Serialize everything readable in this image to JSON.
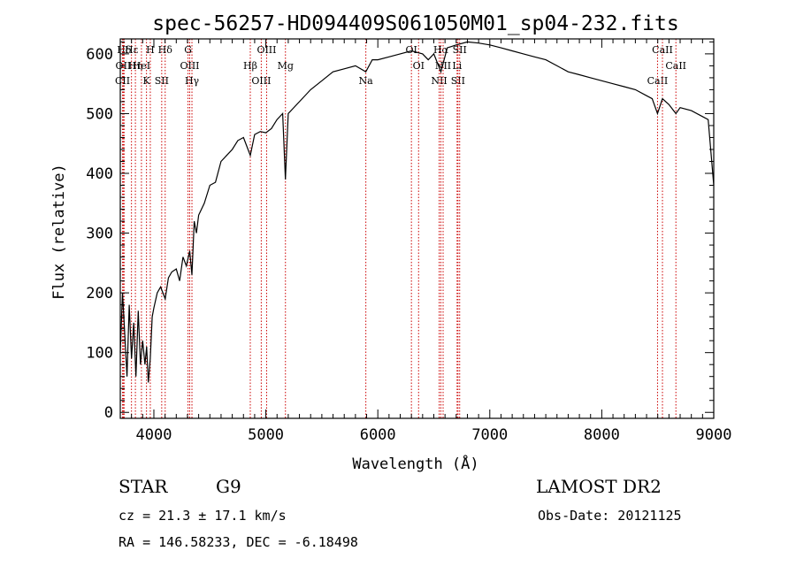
{
  "chart_data": {
    "type": "line",
    "title": "spec-56257-HD094409S061050M01_sp04-232.fits",
    "xlabel": "Wavelength (Å)",
    "ylabel": "Flux (relative)",
    "xlim": [
      3700,
      9000
    ],
    "ylim": [
      -10,
      625
    ],
    "x_ticks": [
      4000,
      5000,
      6000,
      7000,
      8000,
      9000
    ],
    "y_ticks": [
      0,
      100,
      200,
      300,
      400,
      500,
      600
    ],
    "grid": false,
    "series": [
      {
        "x": [
          3700,
          3720,
          3740,
          3760,
          3780,
          3800,
          3820,
          3840,
          3860,
          3880,
          3900,
          3920,
          3935,
          3950,
          3968,
          3985,
          4000,
          4030,
          4060,
          4101,
          4130,
          4160,
          4200,
          4230,
          4260,
          4290,
          4320,
          4340,
          4360,
          4380,
          4400,
          4450,
          4500,
          4550,
          4600,
          4650,
          4700,
          4750,
          4800,
          4861,
          4900,
          4950,
          5000,
          5050,
          5100,
          5150,
          5175,
          5200,
          5300,
          5400,
          5500,
          5600,
          5700,
          5800,
          5893,
          5950,
          6000,
          6100,
          6200,
          6300,
          6400,
          6450,
          6500,
          6563,
          6620,
          6700,
          6800,
          6900,
          7000,
          7100,
          7200,
          7300,
          7400,
          7500,
          7600,
          7700,
          7800,
          7900,
          8000,
          8100,
          8200,
          8300,
          8400,
          8450,
          8498,
          8542,
          8600,
          8662,
          8700,
          8800,
          8900,
          8950,
          9000
        ],
        "y": [
          100,
          200,
          130,
          60,
          180,
          90,
          150,
          60,
          170,
          80,
          120,
          80,
          110,
          50,
          90,
          160,
          175,
          200,
          210,
          190,
          225,
          235,
          240,
          220,
          260,
          245,
          270,
          230,
          320,
          300,
          330,
          350,
          380,
          385,
          420,
          430,
          440,
          455,
          460,
          430,
          465,
          470,
          468,
          475,
          490,
          500,
          390,
          500,
          520,
          540,
          555,
          570,
          575,
          580,
          570,
          590,
          590,
          595,
          600,
          605,
          600,
          590,
          600,
          570,
          610,
          615,
          620,
          618,
          615,
          610,
          605,
          600,
          595,
          590,
          580,
          570,
          565,
          560,
          555,
          550,
          545,
          540,
          530,
          525,
          500,
          525,
          515,
          500,
          510,
          505,
          495,
          490,
          380
        ]
      }
    ],
    "annotations": [
      {
        "label": "Hδ",
        "x": 3734
      },
      {
        "label": "OII",
        "x": 3727
      },
      {
        "label": "CII",
        "x": 3720
      },
      {
        "label": "Hε",
        "x": 3800
      },
      {
        "label": "Hη",
        "x": 3835
      },
      {
        "label": "K",
        "x": 3934
      },
      {
        "label": "H",
        "x": 3968
      },
      {
        "label": "HeI",
        "x": 3889
      },
      {
        "label": "SII",
        "x": 4070
      },
      {
        "label": "Hδ",
        "x": 4101
      },
      {
        "label": "OIII",
        "x": 4320
      },
      {
        "label": "Hγ",
        "x": 4340
      },
      {
        "label": "G",
        "x": 4305
      },
      {
        "label": "Hβ",
        "x": 4861
      },
      {
        "label": "OIII",
        "x": 4959
      },
      {
        "label": "OIII",
        "x": 5007
      },
      {
        "label": "Mg",
        "x": 5175
      },
      {
        "label": "Na",
        "x": 5893
      },
      {
        "label": "OI",
        "x": 6300
      },
      {
        "label": "OI",
        "x": 6364
      },
      {
        "label": "NII",
        "x": 6548
      },
      {
        "label": "Hα",
        "x": 6563
      },
      {
        "label": "NII",
        "x": 6583
      },
      {
        "label": "SII",
        "x": 6716
      },
      {
        "label": "SII",
        "x": 6731
      },
      {
        "label": "Li",
        "x": 6708
      },
      {
        "label": "CaII",
        "x": 8498
      },
      {
        "label": "CaII",
        "x": 8542
      },
      {
        "label": "CaII",
        "x": 8662
      }
    ]
  },
  "info": {
    "class_label": "STAR",
    "subclass_label": "G9",
    "survey": "LAMOST DR2",
    "redshift": "cz = 21.3 ± 17.1 km/s",
    "obs_date": "Obs-Date: 20121125",
    "coords": "RA = 146.58233, DEC =  -6.18498"
  },
  "colors": {
    "line": "#000000",
    "annotation_line": "#cc0000",
    "axis": "#000000"
  }
}
